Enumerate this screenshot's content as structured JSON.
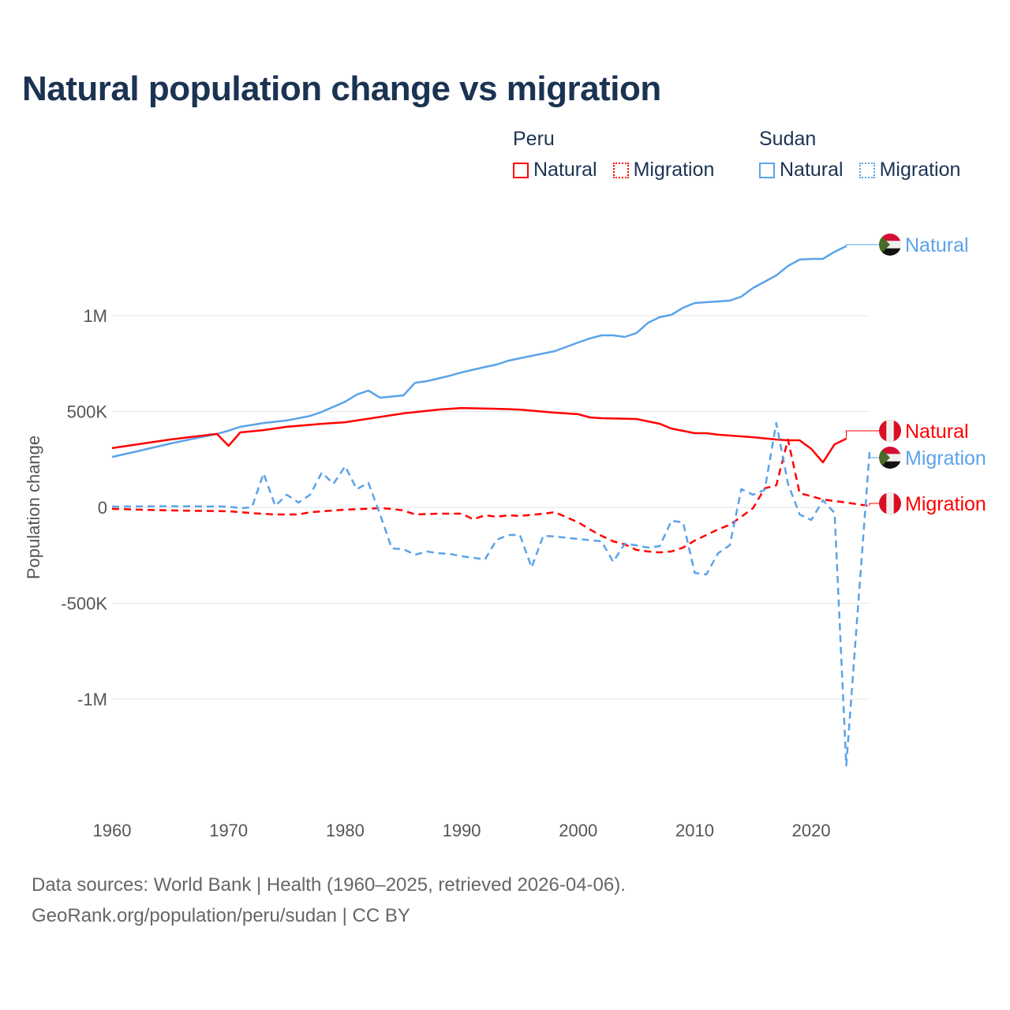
{
  "title": "Natural population change vs migration",
  "legend": {
    "groups": [
      {
        "name": "Peru",
        "color": "#ff0000",
        "items": [
          "Natural",
          "Migration"
        ]
      },
      {
        "name": "Sudan",
        "color": "#5ba3e8",
        "items": [
          "Natural",
          "Migration"
        ]
      }
    ]
  },
  "footer": {
    "line1": "Data sources: World Bank | Health (1960–2025, retrieved 2026-04-06).",
    "line2": "GeoRank.org/population/peru/sudan | CC BY"
  },
  "chart_data": {
    "type": "line",
    "title": "Natural population change vs migration",
    "xlabel": "",
    "ylabel": "Population change",
    "xlim": [
      1960,
      2025
    ],
    "ylim": [
      -1400000,
      1400000
    ],
    "x_ticks": [
      1960,
      1970,
      1980,
      1990,
      2000,
      2010,
      2020
    ],
    "y_ticks": [
      {
        "value": 1000000,
        "label": "1M"
      },
      {
        "value": 500000,
        "label": "500K"
      },
      {
        "value": 0,
        "label": "0"
      },
      {
        "value": -500000,
        "label": "-500K"
      },
      {
        "value": -1000000,
        "label": "-1M"
      }
    ],
    "grid": true,
    "legend_position": "top-right",
    "series": [
      {
        "name": "Sudan Natural",
        "country": "Sudan",
        "label": "Natural",
        "color": "#5ba3e8",
        "dash": false,
        "points": [
          [
            1960,
            263
          ],
          [
            1962,
            290
          ],
          [
            1965,
            333
          ],
          [
            1969,
            383
          ],
          [
            1970,
            400
          ],
          [
            1971,
            420
          ],
          [
            1973,
            440
          ],
          [
            1975,
            453
          ],
          [
            1977,
            477
          ],
          [
            1978,
            498
          ],
          [
            1980,
            551
          ],
          [
            1981,
            588
          ],
          [
            1982,
            609
          ],
          [
            1983,
            572
          ],
          [
            1985,
            584
          ],
          [
            1986,
            650
          ],
          [
            1987,
            658
          ],
          [
            1989,
            687
          ],
          [
            1990,
            704
          ],
          [
            1992,
            732
          ],
          [
            1993,
            745
          ],
          [
            1994,
            765
          ],
          [
            1996,
            790
          ],
          [
            1998,
            815
          ],
          [
            2000,
            860
          ],
          [
            2001,
            881
          ],
          [
            2002,
            897
          ],
          [
            2003,
            897
          ],
          [
            2004,
            889
          ],
          [
            2005,
            909
          ],
          [
            2006,
            963
          ],
          [
            2007,
            992
          ],
          [
            2008,
            1004
          ],
          [
            2009,
            1041
          ],
          [
            2010,
            1066
          ],
          [
            2012,
            1074
          ],
          [
            2013,
            1078
          ],
          [
            2014,
            1099
          ],
          [
            2015,
            1144
          ],
          [
            2016,
            1177
          ],
          [
            2017,
            1210
          ],
          [
            2018,
            1259
          ],
          [
            2019,
            1292
          ],
          [
            2020,
            1296
          ],
          [
            2021,
            1296
          ],
          [
            2022,
            1333
          ],
          [
            2023,
            1362
          ]
        ]
      },
      {
        "name": "Peru Natural",
        "country": "Peru",
        "label": "Natural",
        "color": "#ff0000",
        "dash": false,
        "points": [
          [
            1960,
            309
          ],
          [
            1965,
            354
          ],
          [
            1969,
            383
          ],
          [
            1970,
            321
          ],
          [
            1971,
            391
          ],
          [
            1973,
            403
          ],
          [
            1975,
            420
          ],
          [
            1978,
            436
          ],
          [
            1980,
            444
          ],
          [
            1985,
            490
          ],
          [
            1988,
            510
          ],
          [
            1990,
            518
          ],
          [
            1993,
            514
          ],
          [
            1995,
            510
          ],
          [
            1998,
            494
          ],
          [
            2000,
            486
          ],
          [
            2001,
            469
          ],
          [
            2002,
            465
          ],
          [
            2005,
            461
          ],
          [
            2007,
            436
          ],
          [
            2008,
            411
          ],
          [
            2010,
            387
          ],
          [
            2011,
            387
          ],
          [
            2012,
            379
          ],
          [
            2015,
            366
          ],
          [
            2017,
            354
          ],
          [
            2018,
            350
          ],
          [
            2019,
            350
          ],
          [
            2020,
            305
          ],
          [
            2021,
            235
          ],
          [
            2022,
            329
          ],
          [
            2023,
            358
          ]
        ]
      },
      {
        "name": "Sudan Migration",
        "country": "Sudan",
        "label": "Migration",
        "color": "#5ba3e8",
        "dash": true,
        "points": [
          [
            1960,
            4
          ],
          [
            1965,
            6
          ],
          [
            1970,
            4
          ],
          [
            1971,
            -4
          ],
          [
            1972,
            0
          ],
          [
            1973,
            177
          ],
          [
            1974,
            8
          ],
          [
            1975,
            66
          ],
          [
            1976,
            25
          ],
          [
            1977,
            66
          ],
          [
            1978,
            181
          ],
          [
            1979,
            123
          ],
          [
            1980,
            214
          ],
          [
            1981,
            95
          ],
          [
            1982,
            128
          ],
          [
            1983,
            -37
          ],
          [
            1984,
            -214
          ],
          [
            1985,
            -218
          ],
          [
            1986,
            -247
          ],
          [
            1987,
            -230
          ],
          [
            1988,
            -239
          ],
          [
            1989,
            -243
          ],
          [
            1990,
            -255
          ],
          [
            1991,
            -263
          ],
          [
            1992,
            -272
          ],
          [
            1993,
            -169
          ],
          [
            1994,
            -144
          ],
          [
            1995,
            -144
          ],
          [
            1996,
            -313
          ],
          [
            1997,
            -148
          ],
          [
            1998,
            -152
          ],
          [
            2000,
            -165
          ],
          [
            2002,
            -177
          ],
          [
            2003,
            -284
          ],
          [
            2004,
            -189
          ],
          [
            2005,
            -198
          ],
          [
            2006,
            -210
          ],
          [
            2007,
            -202
          ],
          [
            2008,
            -70
          ],
          [
            2009,
            -78
          ],
          [
            2010,
            -342
          ],
          [
            2011,
            -350
          ],
          [
            2012,
            -239
          ],
          [
            2013,
            -198
          ],
          [
            2014,
            95
          ],
          [
            2015,
            66
          ],
          [
            2016,
            91
          ],
          [
            2017,
            440
          ],
          [
            2018,
            123
          ],
          [
            2019,
            -37
          ],
          [
            2020,
            -66
          ],
          [
            2021,
            37
          ],
          [
            2022,
            -29
          ],
          [
            2023,
            -1346
          ],
          [
            2024,
            -530
          ],
          [
            2025,
            288
          ]
        ]
      },
      {
        "name": "Peru Migration",
        "country": "Peru",
        "label": "Migration",
        "color": "#ff0000",
        "dash": true,
        "points": [
          [
            1960,
            -8
          ],
          [
            1965,
            -16
          ],
          [
            1970,
            -20
          ],
          [
            1972,
            -30
          ],
          [
            1974,
            -37
          ],
          [
            1976,
            -37
          ],
          [
            1977,
            -25
          ],
          [
            1980,
            -12
          ],
          [
            1983,
            -4
          ],
          [
            1984,
            -8
          ],
          [
            1985,
            -16
          ],
          [
            1986,
            -37
          ],
          [
            1988,
            -33
          ],
          [
            1990,
            -33
          ],
          [
            1991,
            -62
          ],
          [
            1992,
            -41
          ],
          [
            1993,
            -49
          ],
          [
            1994,
            -41
          ],
          [
            1995,
            -45
          ],
          [
            1997,
            -33
          ],
          [
            1998,
            -25
          ],
          [
            2000,
            -78
          ],
          [
            2001,
            -115
          ],
          [
            2002,
            -148
          ],
          [
            2003,
            -177
          ],
          [
            2004,
            -193
          ],
          [
            2005,
            -222
          ],
          [
            2006,
            -230
          ],
          [
            2007,
            -235
          ],
          [
            2008,
            -230
          ],
          [
            2009,
            -210
          ],
          [
            2010,
            -173
          ],
          [
            2011,
            -144
          ],
          [
            2012,
            -115
          ],
          [
            2013,
            -91
          ],
          [
            2014,
            -49
          ],
          [
            2015,
            -4
          ],
          [
            2016,
            99
          ],
          [
            2017,
            115
          ],
          [
            2018,
            354
          ],
          [
            2019,
            74
          ],
          [
            2020,
            58
          ],
          [
            2021,
            41
          ],
          [
            2022,
            33
          ],
          [
            2023,
            25
          ],
          [
            2024,
            16
          ],
          [
            2025,
            8
          ]
        ]
      }
    ],
    "value_unit": "thousands"
  }
}
